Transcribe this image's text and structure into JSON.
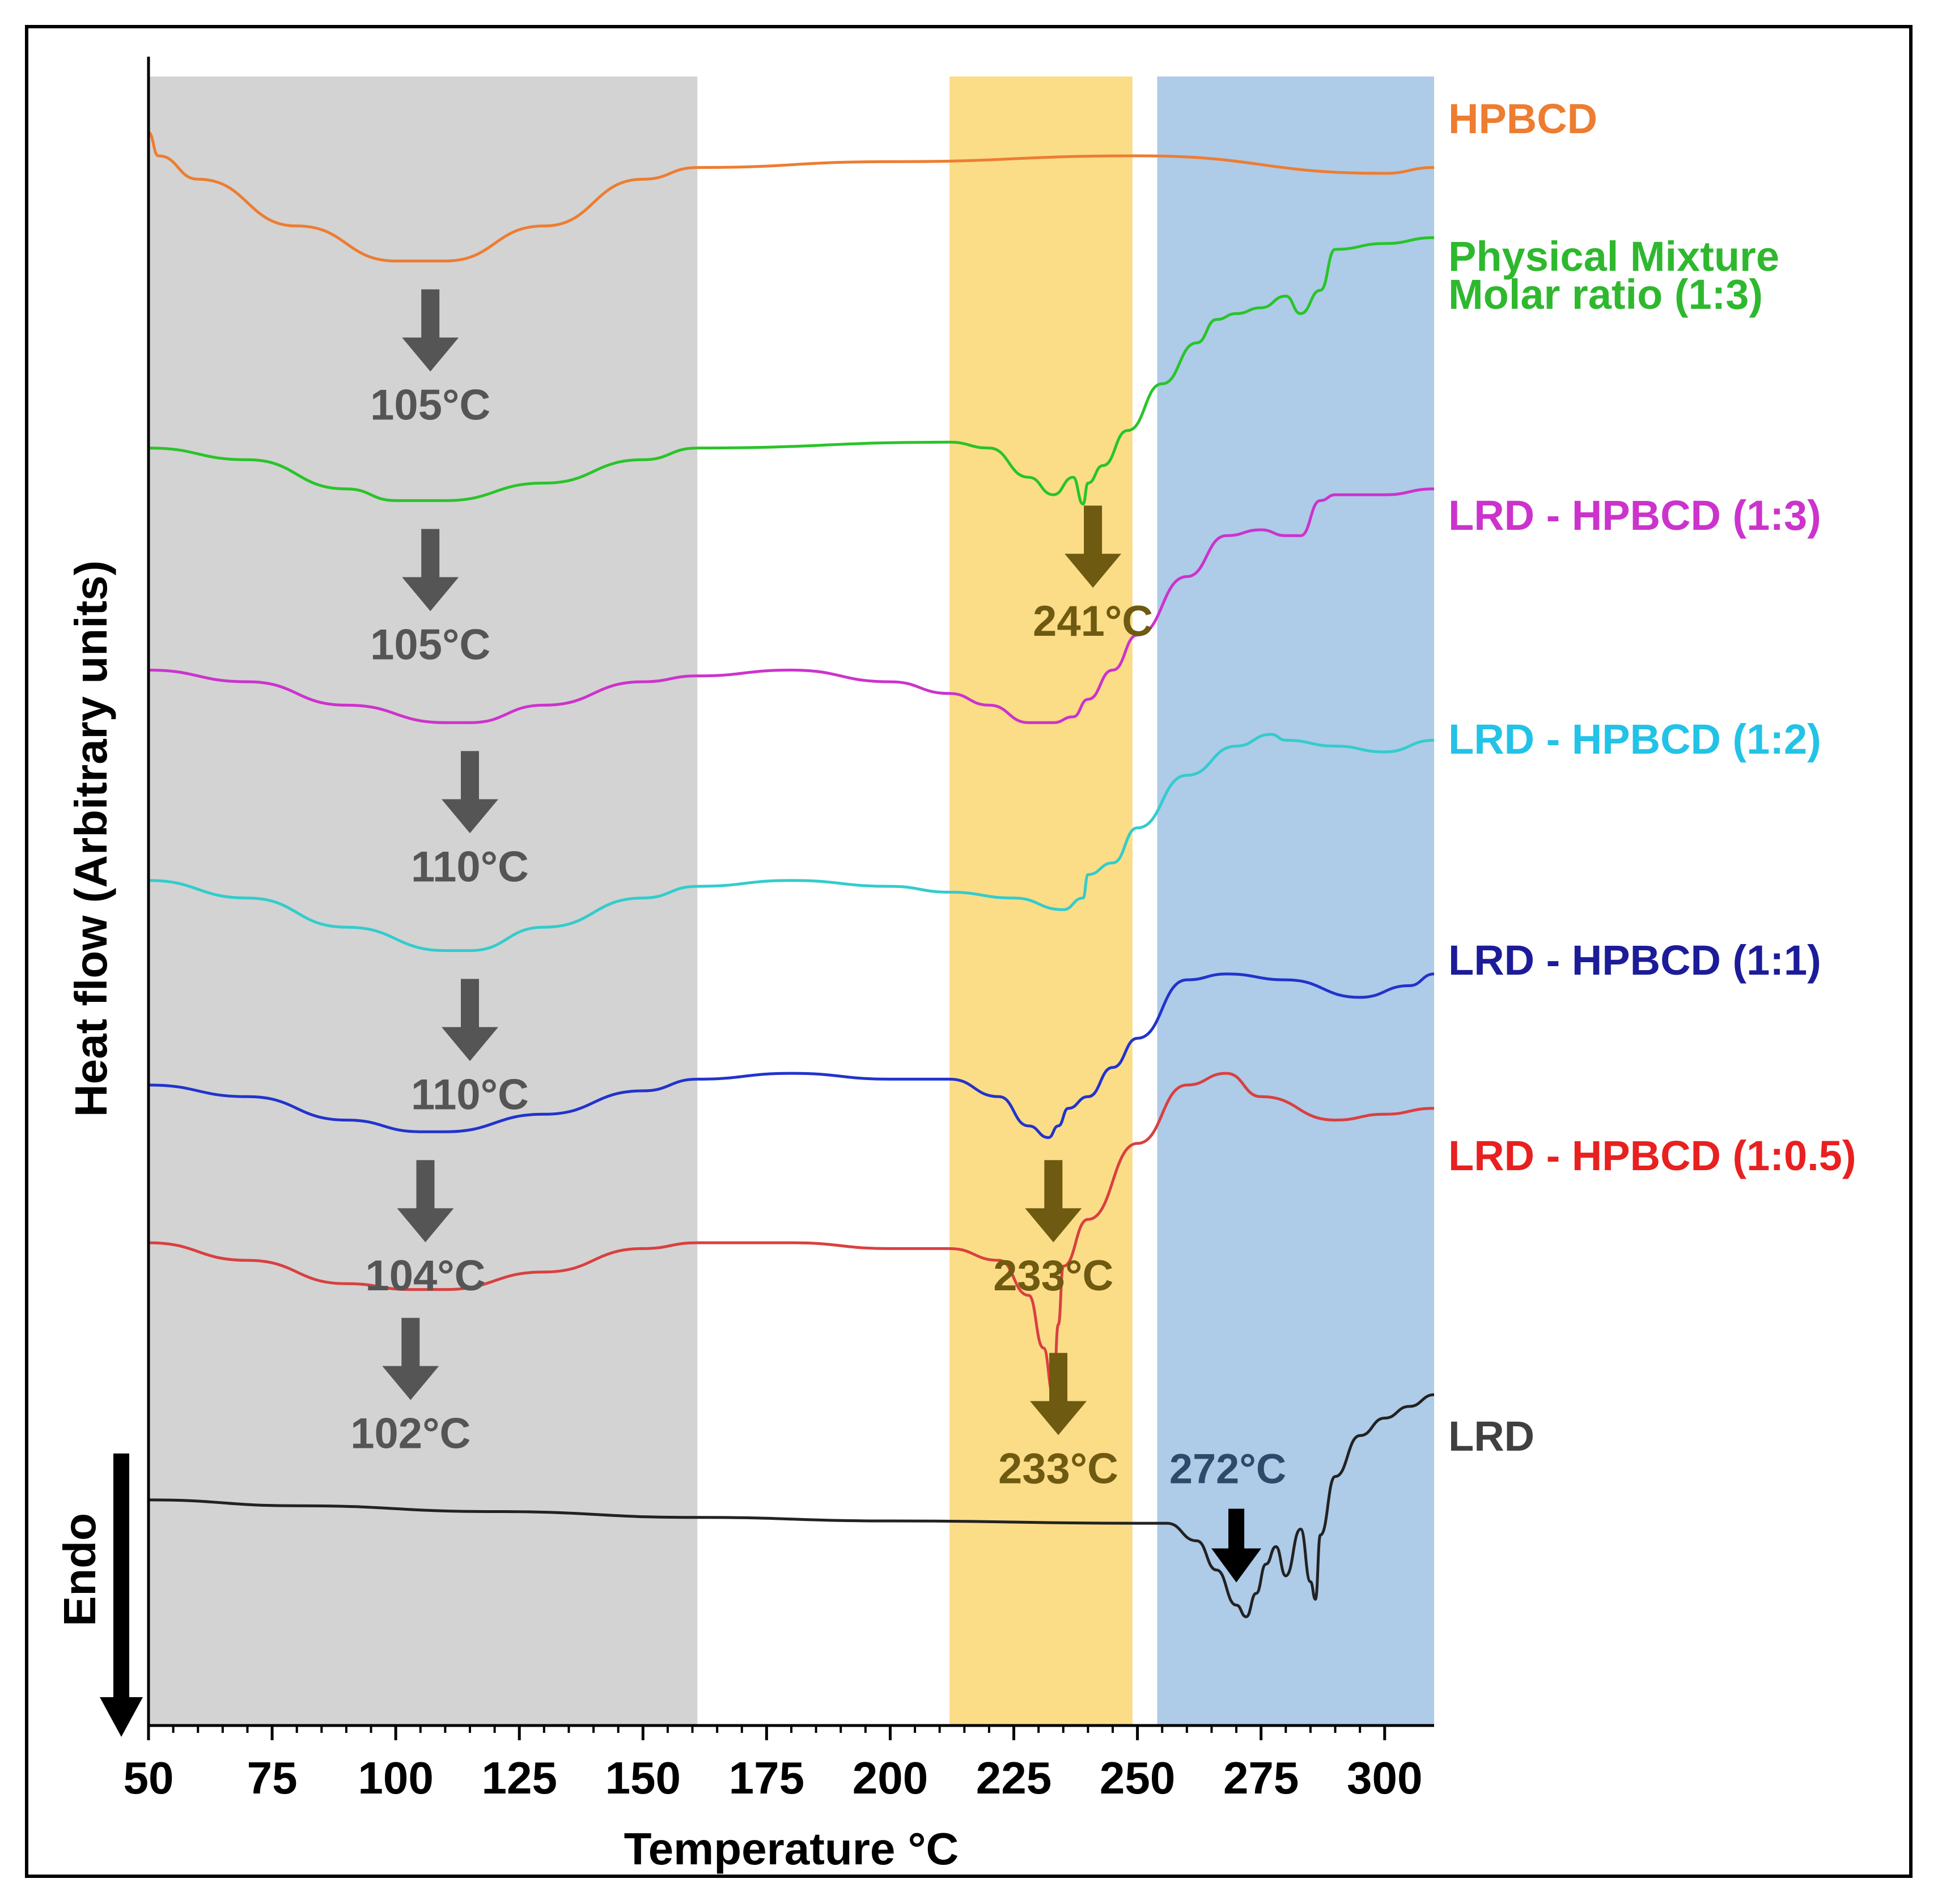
{
  "chart_data": {
    "type": "line",
    "title": "",
    "xlabel": "Temperature °C",
    "ylabel": "Heat flow (Arbitrary units)",
    "endo_label": "Endo",
    "xlim": [
      50,
      310
    ],
    "xticks": [
      50,
      75,
      100,
      125,
      150,
      175,
      200,
      225,
      250,
      275,
      300
    ],
    "xtick_labels": [
      "50",
      "75",
      "100",
      "125",
      "150",
      "175",
      "200",
      "225",
      "250",
      "275",
      "300"
    ],
    "yticks": false,
    "grid": false,
    "shaded_regions": [
      {
        "name": "dehydration-region",
        "x": [
          50,
          161
        ],
        "color": "#d3d3d3"
      },
      {
        "name": "melting-region",
        "x": [
          212,
          249
        ],
        "color": "#fbdd88"
      },
      {
        "name": "degradation-region",
        "x": [
          254,
          310
        ],
        "color": "#aecbe8"
      }
    ],
    "series": [
      {
        "name": "HPBCD",
        "label": "HPBCD",
        "color": "#ed7d31",
        "label_color": "#ed7d31",
        "x": [
          50,
          52,
          60,
          80,
          100,
          110,
          130,
          150,
          161,
          200,
          250,
          300,
          310
        ],
        "y": [
          13.0,
          12.8,
          12.6,
          12.2,
          11.9,
          11.9,
          12.2,
          12.6,
          12.7,
          12.75,
          12.8,
          12.65,
          12.7
        ]
      },
      {
        "name": "Physical Mixture Molar ratio (1:3)",
        "label": [
          "Physical Mixture",
          "Molar ratio (1:3)"
        ],
        "color": "#29c429",
        "label_color": "#2eb82e",
        "x": [
          50,
          70,
          90,
          100,
          110,
          130,
          150,
          161,
          212,
          220,
          228,
          233,
          237,
          239,
          240,
          243,
          248,
          255,
          262,
          266,
          270,
          275,
          280,
          283,
          287,
          290,
          300,
          310
        ],
        "y": [
          10.3,
          10.2,
          9.95,
          9.85,
          9.85,
          10.0,
          10.2,
          10.3,
          10.35,
          10.3,
          10.05,
          9.9,
          10.05,
          9.82,
          10.0,
          10.15,
          10.45,
          10.85,
          11.2,
          11.4,
          11.45,
          11.5,
          11.6,
          11.45,
          11.65,
          12.0,
          12.05,
          12.1
        ]
      },
      {
        "name": "LRD - HPBCD (1:3)",
        "label": "LRD - HPBCD (1:3)",
        "color": "#cc33cc",
        "label_color": "#cc33cc",
        "x": [
          50,
          70,
          90,
          110,
          115,
          130,
          150,
          161,
          180,
          200,
          212,
          220,
          228,
          233,
          237,
          240,
          245,
          250,
          260,
          268,
          275,
          280,
          283,
          287,
          290,
          300,
          310
        ],
        "y": [
          8.4,
          8.3,
          8.1,
          7.95,
          7.95,
          8.1,
          8.3,
          8.35,
          8.4,
          8.3,
          8.2,
          8.1,
          7.95,
          7.95,
          8.0,
          8.15,
          8.4,
          8.7,
          9.2,
          9.55,
          9.6,
          9.55,
          9.55,
          9.85,
          9.9,
          9.9,
          9.95
        ]
      },
      {
        "name": "LRD - HPBCD (1:2)",
        "label": "LRD - HPBCD (1:2)",
        "color": "#33cccc",
        "label_color": "#22c3e6",
        "x": [
          50,
          70,
          90,
          110,
          115,
          130,
          150,
          161,
          180,
          200,
          212,
          225,
          235,
          239,
          240,
          245,
          250,
          260,
          270,
          277,
          280,
          290,
          300,
          310
        ],
        "y": [
          6.6,
          6.45,
          6.2,
          6.0,
          6.0,
          6.2,
          6.45,
          6.55,
          6.6,
          6.55,
          6.5,
          6.45,
          6.35,
          6.45,
          6.65,
          6.75,
          7.05,
          7.5,
          7.75,
          7.85,
          7.8,
          7.75,
          7.7,
          7.8
        ]
      },
      {
        "name": "LRD - HPBCD (1:1)",
        "label": "LRD - HPBCD (1:1)",
        "color": "#2233cc",
        "label_color": "#1c1c99",
        "x": [
          50,
          70,
          90,
          105,
          110,
          130,
          150,
          161,
          180,
          200,
          212,
          222,
          228,
          232,
          234,
          236,
          240,
          245,
          250,
          260,
          268,
          280,
          295,
          305,
          310
        ],
        "y": [
          4.85,
          4.75,
          4.55,
          4.45,
          4.45,
          4.6,
          4.8,
          4.9,
          4.95,
          4.9,
          4.9,
          4.75,
          4.5,
          4.4,
          4.5,
          4.65,
          4.75,
          5.0,
          5.25,
          5.75,
          5.8,
          5.75,
          5.6,
          5.7,
          5.8
        ]
      },
      {
        "name": "LRD - HPBCD (1:0.5)",
        "label": "LRD - HPBCD (1:0.5)",
        "color": "#d94040",
        "label_color": "#e82020",
        "x": [
          50,
          70,
          90,
          103,
          110,
          130,
          150,
          161,
          180,
          200,
          212,
          222,
          228,
          231,
          233,
          234,
          235,
          240,
          250,
          260,
          268,
          275,
          290,
          300,
          310
        ],
        "y": [
          3.5,
          3.35,
          3.15,
          3.1,
          3.1,
          3.25,
          3.45,
          3.5,
          3.5,
          3.45,
          3.45,
          3.35,
          3.05,
          2.6,
          2.2,
          2.8,
          3.3,
          3.7,
          4.35,
          4.85,
          4.95,
          4.75,
          4.55,
          4.6,
          4.65
        ]
      },
      {
        "name": "LRD",
        "label": "LRD",
        "color": "#222222",
        "label_color": "#404040",
        "x": [
          50,
          80,
          120,
          161,
          200,
          250,
          256,
          262,
          266,
          270,
          272,
          274,
          276,
          278,
          280,
          283,
          285,
          286,
          287,
          290,
          295,
          300,
          305,
          310
        ],
        "y": [
          1.3,
          1.25,
          1.2,
          1.15,
          1.12,
          1.1,
          1.1,
          0.95,
          0.7,
          0.4,
          0.3,
          0.5,
          0.75,
          0.9,
          0.65,
          1.05,
          0.6,
          0.45,
          1.0,
          1.5,
          1.85,
          2.0,
          2.1,
          2.2
        ]
      }
    ],
    "annotations": [
      {
        "text": "105°C",
        "series": "HPBCD",
        "x": 107,
        "color": "#555555"
      },
      {
        "text": "105°C",
        "series": "Physical Mixture Molar ratio (1:3)",
        "x": 107,
        "color": "#555555"
      },
      {
        "text": "241°C",
        "series": "Physical Mixture Molar ratio (1:3)",
        "x": 241,
        "color": "#6e5a10"
      },
      {
        "text": "110°C",
        "series": "LRD - HPBCD (1:3)",
        "x": 115,
        "color": "#555555"
      },
      {
        "text": "110°C",
        "series": "LRD - HPBCD (1:2)",
        "x": 115,
        "color": "#555555"
      },
      {
        "text": "104°C",
        "series": "LRD - HPBCD (1:1)",
        "x": 106,
        "color": "#555555"
      },
      {
        "text": "233°C",
        "series": "LRD - HPBCD (1:1)",
        "x": 233,
        "color": "#6e5a10"
      },
      {
        "text": "102°C",
        "series": "LRD - HPBCD (1:0.5)",
        "x": 103,
        "color": "#555555"
      },
      {
        "text": "233°C",
        "series": "LRD - HPBCD (1:0.5)",
        "x": 234,
        "color": "#6e5a10"
      },
      {
        "text": "272°C",
        "series": "LRD",
        "x": 270,
        "color": "#2c4a6a"
      }
    ]
  }
}
